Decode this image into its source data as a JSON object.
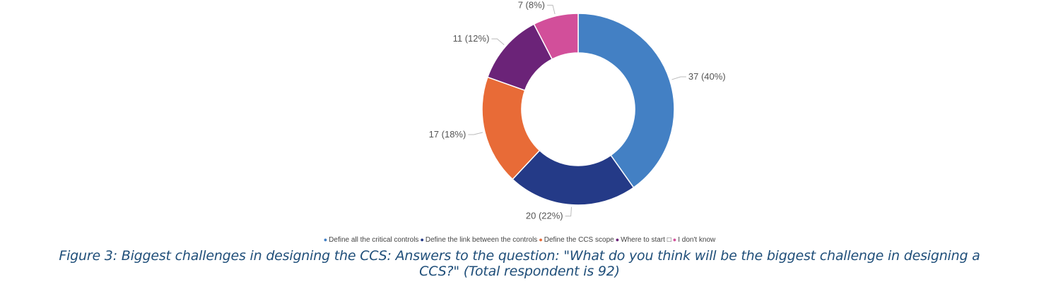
{
  "chart_data": {
    "type": "pie",
    "subtype": "donut",
    "title": "",
    "slices": [
      {
        "name": "Define all the critical controls",
        "value": 37,
        "label": "37 (40%)",
        "color": "#4380c4"
      },
      {
        "name": "Define the link between the controls",
        "value": 20,
        "label": "20 (22%)",
        "color": "#243a87"
      },
      {
        "name": "Define the CCS scope",
        "value": 17,
        "label": "17 (18%)",
        "color": "#e86b37"
      },
      {
        "name": "Where to start □",
        "value": 11,
        "label": "11 (12%)",
        "color": "#6b2378"
      },
      {
        "name": "I don't know",
        "value": 7,
        "label": "7 (8%)",
        "color": "#d24f9a"
      }
    ],
    "legend_position": "bottom",
    "start_angle": "top",
    "direction": "clockwise"
  },
  "caption": {
    "line1": "Figure 3: Biggest challenges in designing the CCS: Answers to the question:  \"What do you think will be the biggest challenge in designing a",
    "line2": "CCS?\"    (Total respondent is 92)"
  }
}
